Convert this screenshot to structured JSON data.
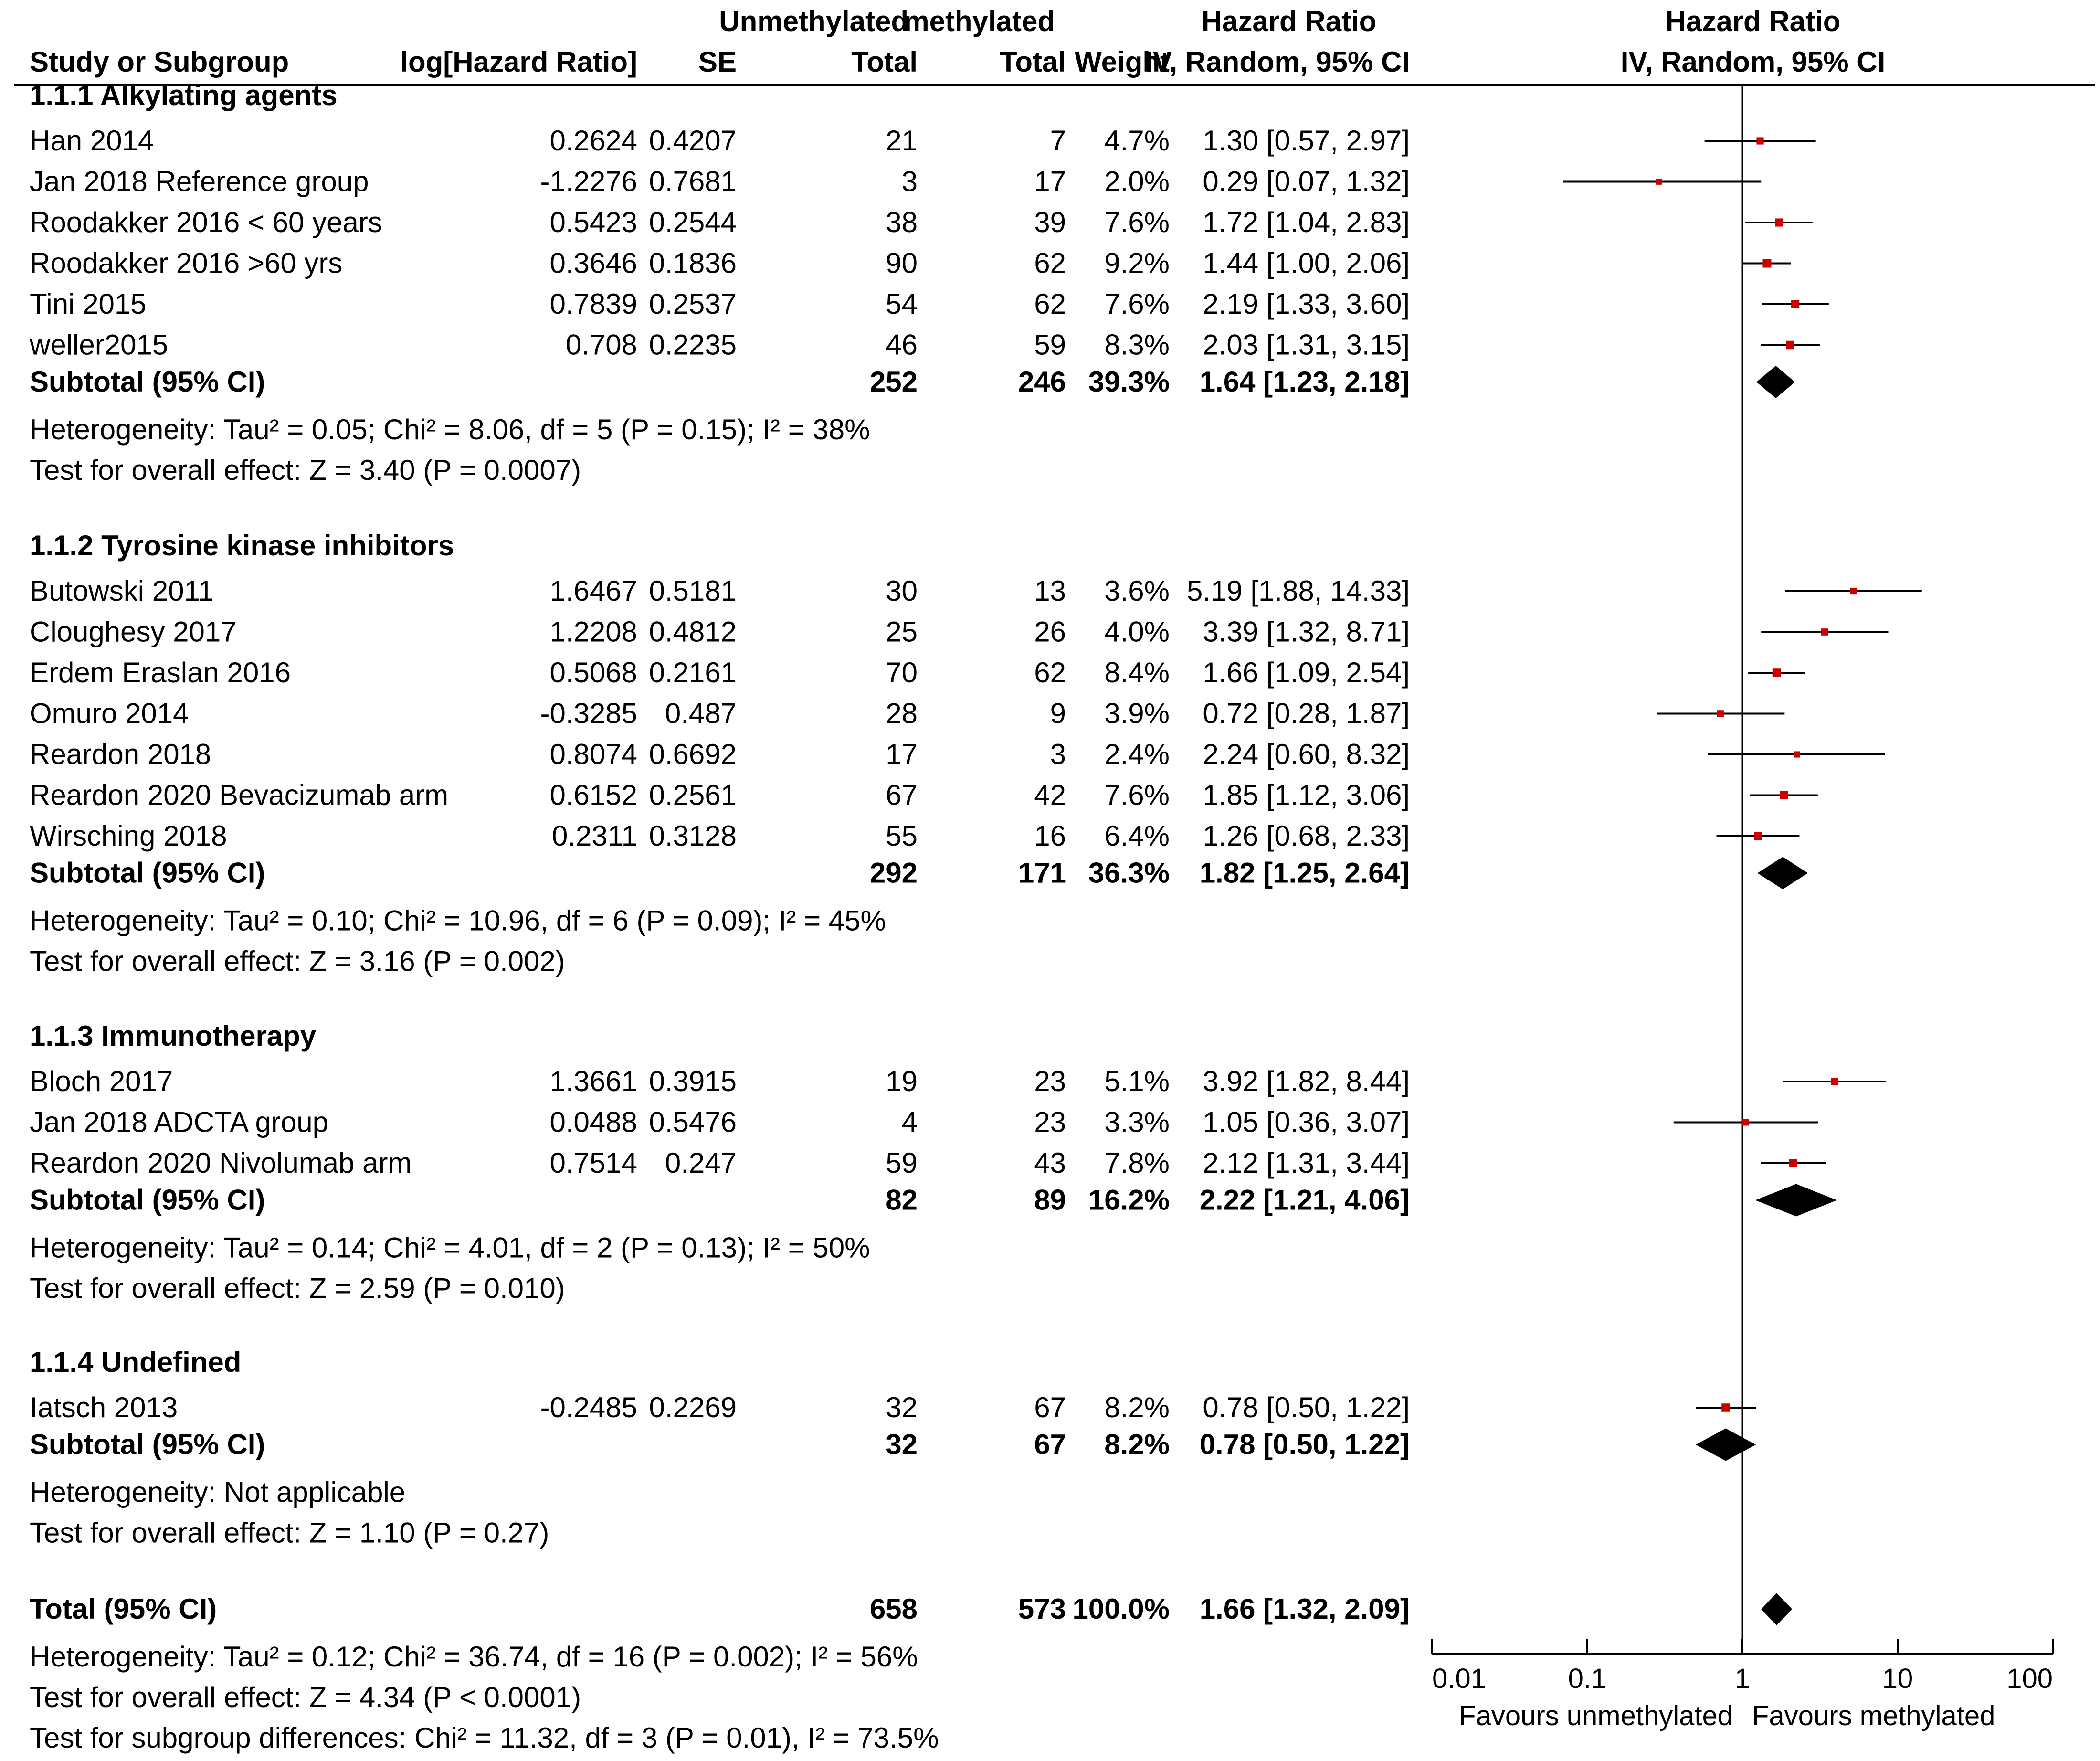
{
  "chart_data": {
    "type": "forest",
    "title": "",
    "headers": {
      "group1_top": "Unmethylated",
      "group2_top": "methylated",
      "hr_top": "Hazard Ratio",
      "plot_top": "Hazard Ratio",
      "study": "Study or Subgroup",
      "loghr": "log[Hazard Ratio]",
      "se": "SE",
      "total1": "Total",
      "total2": "Total",
      "weight": "Weight",
      "ci": "IV, Random, 95% CI",
      "plot_ci": "IV, Random, 95% CI"
    },
    "axis": {
      "scale": "log",
      "xlim": [
        0.01,
        100
      ],
      "ticks": [
        "0.01",
        "0.1",
        "1",
        "10",
        "100"
      ],
      "tick_values": [
        0.01,
        0.1,
        1,
        10,
        100
      ],
      "label_left": "Favours unmethylated",
      "label_right": "Favours methylated"
    },
    "groups": [
      {
        "name": "1.1.1 Alkylating agents",
        "studies": [
          {
            "study": "Han 2014",
            "loghr": "0.2624",
            "se": "0.4207",
            "total1": "21",
            "total2": "7",
            "weight": "4.7%",
            "ci": "1.30 [0.57, 2.97]",
            "hr": 1.3,
            "lo": 0.57,
            "hi": 2.97
          },
          {
            "study": "Jan 2018 Reference group",
            "loghr": "-1.2276",
            "se": "0.7681",
            "total1": "3",
            "total2": "17",
            "weight": "2.0%",
            "ci": "0.29 [0.07, 1.32]",
            "hr": 0.29,
            "lo": 0.07,
            "hi": 1.32
          },
          {
            "study": "Roodakker 2016 < 60 years",
            "loghr": "0.5423",
            "se": "0.2544",
            "total1": "38",
            "total2": "39",
            "weight": "7.6%",
            "ci": "1.72 [1.04, 2.83]",
            "hr": 1.72,
            "lo": 1.04,
            "hi": 2.83
          },
          {
            "study": "Roodakker 2016 >60 yrs",
            "loghr": "0.3646",
            "se": "0.1836",
            "total1": "90",
            "total2": "62",
            "weight": "9.2%",
            "ci": "1.44 [1.00, 2.06]",
            "hr": 1.44,
            "lo": 1.0,
            "hi": 2.06
          },
          {
            "study": "Tini 2015",
            "loghr": "0.7839",
            "se": "0.2537",
            "total1": "54",
            "total2": "62",
            "weight": "7.6%",
            "ci": "2.19 [1.33, 3.60]",
            "hr": 2.19,
            "lo": 1.33,
            "hi": 3.6
          },
          {
            "study": "weller2015",
            "loghr": "0.708",
            "se": "0.2235",
            "total1": "46",
            "total2": "59",
            "weight": "8.3%",
            "ci": "2.03 [1.31, 3.15]",
            "hr": 2.03,
            "lo": 1.31,
            "hi": 3.15
          }
        ],
        "subtotal": {
          "label": "Subtotal (95% CI)",
          "total1": "252",
          "total2": "246",
          "weight": "39.3%",
          "ci": "1.64 [1.23, 2.18]",
          "hr": 1.64,
          "lo": 1.23,
          "hi": 2.18
        },
        "heterogeneity": "Heterogeneity: Tau² = 0.05; Chi² = 8.06, df = 5 (P = 0.15); I² = 38%",
        "overall": "Test for overall effect: Z = 3.40 (P = 0.0007)"
      },
      {
        "name": "1.1.2 Tyrosine kinase inhibitors",
        "studies": [
          {
            "study": "Butowski 2011",
            "loghr": "1.6467",
            "se": "0.5181",
            "total1": "30",
            "total2": "13",
            "weight": "3.6%",
            "ci": "5.19 [1.88, 14.33]",
            "hr": 5.19,
            "lo": 1.88,
            "hi": 14.33
          },
          {
            "study": "Cloughesy 2017",
            "loghr": "1.2208",
            "se": "0.4812",
            "total1": "25",
            "total2": "26",
            "weight": "4.0%",
            "ci": "3.39 [1.32, 8.71]",
            "hr": 3.39,
            "lo": 1.32,
            "hi": 8.71
          },
          {
            "study": "Erdem Eraslan 2016",
            "loghr": "0.5068",
            "se": "0.2161",
            "total1": "70",
            "total2": "62",
            "weight": "8.4%",
            "ci": "1.66 [1.09, 2.54]",
            "hr": 1.66,
            "lo": 1.09,
            "hi": 2.54
          },
          {
            "study": "Omuro 2014",
            "loghr": "-0.3285",
            "se": "0.487",
            "total1": "28",
            "total2": "9",
            "weight": "3.9%",
            "ci": "0.72 [0.28, 1.87]",
            "hr": 0.72,
            "lo": 0.28,
            "hi": 1.87
          },
          {
            "study": "Reardon 2018",
            "loghr": "0.8074",
            "se": "0.6692",
            "total1": "17",
            "total2": "3",
            "weight": "2.4%",
            "ci": "2.24 [0.60, 8.32]",
            "hr": 2.24,
            "lo": 0.6,
            "hi": 8.32
          },
          {
            "study": "Reardon 2020 Bevacizumab arm",
            "loghr": "0.6152",
            "se": "0.2561",
            "total1": "67",
            "total2": "42",
            "weight": "7.6%",
            "ci": "1.85 [1.12, 3.06]",
            "hr": 1.85,
            "lo": 1.12,
            "hi": 3.06
          },
          {
            "study": "Wirsching 2018",
            "loghr": "0.2311",
            "se": "0.3128",
            "total1": "55",
            "total2": "16",
            "weight": "6.4%",
            "ci": "1.26 [0.68, 2.33]",
            "hr": 1.26,
            "lo": 0.68,
            "hi": 2.33
          }
        ],
        "subtotal": {
          "label": "Subtotal (95% CI)",
          "total1": "292",
          "total2": "171",
          "weight": "36.3%",
          "ci": "1.82 [1.25, 2.64]",
          "hr": 1.82,
          "lo": 1.25,
          "hi": 2.64
        },
        "heterogeneity": "Heterogeneity: Tau² = 0.10; Chi² = 10.96, df = 6 (P = 0.09); I² = 45%",
        "overall": "Test for overall effect: Z = 3.16 (P = 0.002)"
      },
      {
        "name": "1.1.3 Immunotherapy",
        "studies": [
          {
            "study": "Bloch 2017",
            "loghr": "1.3661",
            "se": "0.3915",
            "total1": "19",
            "total2": "23",
            "weight": "5.1%",
            "ci": "3.92 [1.82, 8.44]",
            "hr": 3.92,
            "lo": 1.82,
            "hi": 8.44
          },
          {
            "study": "Jan 2018 ADCTA group",
            "loghr": "0.0488",
            "se": "0.5476",
            "total1": "4",
            "total2": "23",
            "weight": "3.3%",
            "ci": "1.05 [0.36, 3.07]",
            "hr": 1.05,
            "lo": 0.36,
            "hi": 3.07
          },
          {
            "study": "Reardon 2020 Nivolumab arm",
            "loghr": "0.7514",
            "se": "0.247",
            "total1": "59",
            "total2": "43",
            "weight": "7.8%",
            "ci": "2.12 [1.31, 3.44]",
            "hr": 2.12,
            "lo": 1.31,
            "hi": 3.44
          }
        ],
        "subtotal": {
          "label": "Subtotal (95% CI)",
          "total1": "82",
          "total2": "89",
          "weight": "16.2%",
          "ci": "2.22 [1.21, 4.06]",
          "hr": 2.22,
          "lo": 1.21,
          "hi": 4.06
        },
        "heterogeneity": "Heterogeneity: Tau² = 0.14; Chi² = 4.01, df = 2 (P = 0.13); I² = 50%",
        "overall": "Test for overall effect: Z = 2.59 (P = 0.010)"
      },
      {
        "name": "1.1.4 Undefined",
        "studies": [
          {
            "study": "Iatsch 2013",
            "loghr": "-0.2485",
            "se": "0.2269",
            "total1": "32",
            "total2": "67",
            "weight": "8.2%",
            "ci": "0.78 [0.50, 1.22]",
            "hr": 0.78,
            "lo": 0.5,
            "hi": 1.22
          }
        ],
        "subtotal": {
          "label": "Subtotal (95% CI)",
          "total1": "32",
          "total2": "67",
          "weight": "8.2%",
          "ci": "0.78 [0.50, 1.22]",
          "hr": 0.78,
          "lo": 0.5,
          "hi": 1.22
        },
        "heterogeneity": "Heterogeneity: Not applicable",
        "overall": "Test for overall effect: Z = 1.10 (P = 0.27)"
      }
    ],
    "total": {
      "label": "Total (95% CI)",
      "total1": "658",
      "total2": "573",
      "weight": "100.0%",
      "ci": "1.66 [1.32, 2.09]",
      "hr": 1.66,
      "lo": 1.32,
      "hi": 2.09
    },
    "footer": [
      "Heterogeneity: Tau² = 0.12; Chi² = 36.74, df = 16 (P = 0.002); I² = 56%",
      "Test for overall effect: Z = 4.34 (P < 0.0001)",
      "Test for subgroup differences: Chi² = 11.32, df = 3 (P = 0.01), I² = 73.5%"
    ],
    "colors": {
      "marker": "#cc0000",
      "line": "#000000",
      "diamond": "#000000"
    }
  }
}
